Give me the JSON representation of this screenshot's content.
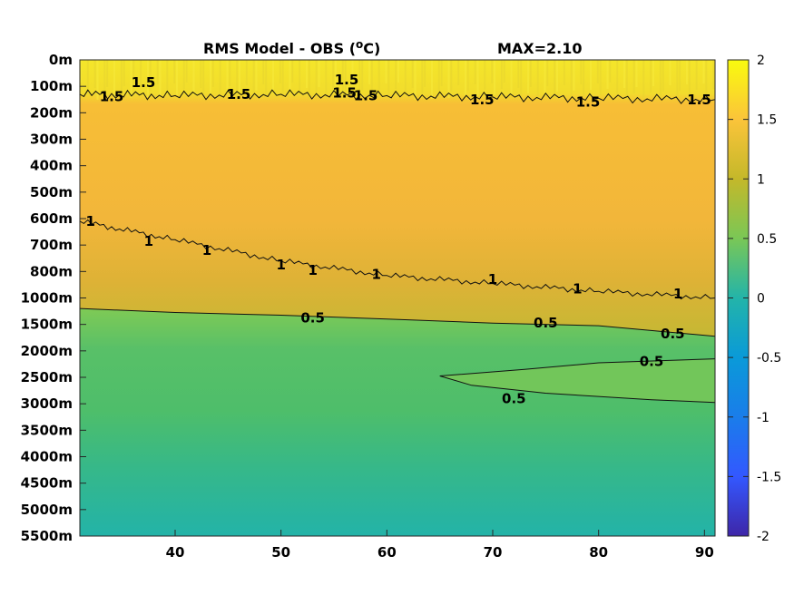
{
  "chart_data": {
    "type": "heatmap",
    "title": "RMS Model - OBS (",
    "title_unit_sup": "o",
    "title_unit_end": "C)",
    "max_label": "MAX=2.10",
    "x_ticks": [
      40,
      50,
      60,
      70,
      80,
      90
    ],
    "xlim": [
      31,
      91
    ],
    "y_ticks": [
      "0m",
      "100m",
      "200m",
      "300m",
      "400m",
      "500m",
      "600m",
      "700m",
      "800m",
      "1000m",
      "1500m",
      "2000m",
      "2500m",
      "3000m",
      "3500m",
      "4000m",
      "4500m",
      "5000m",
      "5500m"
    ],
    "colorbar": {
      "ticks": [
        "2",
        "1.5",
        "1",
        "0.5",
        "0",
        "-0.5",
        "-1",
        "-1.5",
        "-2"
      ],
      "range": [
        -2,
        2
      ]
    },
    "rms_profile": [
      {
        "depth": "0m",
        "value_at_31": 1.85,
        "value_at_91": 1.85
      },
      {
        "depth": "100m",
        "value_at_31": 1.75,
        "value_at_91": 1.75
      },
      {
        "depth": "200m",
        "value_at_31": 1.4,
        "value_at_91": 1.45
      },
      {
        "depth": "300m",
        "value_at_31": 1.35,
        "value_at_91": 1.4
      },
      {
        "depth": "400m",
        "value_at_31": 1.32,
        "value_at_91": 1.38
      },
      {
        "depth": "500m",
        "value_at_31": 1.28,
        "value_at_91": 1.35
      },
      {
        "depth": "600m",
        "value_at_31": 1.02,
        "value_at_91": 1.3
      },
      {
        "depth": "700m",
        "value_at_31": 0.95,
        "value_at_91": 1.25
      },
      {
        "depth": "800m",
        "value_at_31": 0.85,
        "value_at_91": 1.15
      },
      {
        "depth": "1000m",
        "value_at_31": 0.6,
        "value_at_91": 0.95
      },
      {
        "depth": "1500m",
        "value_at_31": 0.45,
        "value_at_91": 0.55
      },
      {
        "depth": "2000m",
        "value_at_31": 0.42,
        "value_at_91": 0.5
      },
      {
        "depth": "2500m",
        "value_at_31": 0.45,
        "value_at_91": 0.55
      },
      {
        "depth": "3000m",
        "value_at_31": 0.4,
        "value_at_91": 0.5
      },
      {
        "depth": "3500m",
        "value_at_31": 0.32,
        "value_at_91": 0.42
      },
      {
        "depth": "4000m",
        "value_at_31": 0.28,
        "value_at_91": 0.35
      },
      {
        "depth": "4500m",
        "value_at_31": 0.25,
        "value_at_91": 0.3
      },
      {
        "depth": "5000m",
        "value_at_31": 0.22,
        "value_at_91": 0.26
      },
      {
        "depth": "5500m",
        "value_at_31": 0.18,
        "value_at_91": 0.2
      }
    ],
    "contours": [
      {
        "level": 1.5,
        "points": [
          [
            31,
            1.3
          ],
          [
            40,
            1.35
          ],
          [
            50,
            1.3
          ],
          [
            60,
            1.35
          ],
          [
            70,
            1.4
          ],
          [
            80,
            1.45
          ],
          [
            91,
            1.5
          ]
        ],
        "labels": [
          {
            "x": 34,
            "y": 1.38
          },
          {
            "x": 37,
            "y": 0.85
          },
          {
            "x": 46,
            "y": 1.3
          },
          {
            "x": 56,
            "y": 1.25
          },
          {
            "x": 56.2,
            "y": 0.75
          },
          {
            "x": 58,
            "y": 1.35
          },
          {
            "x": 69,
            "y": 1.5
          },
          {
            "x": 79,
            "y": 1.6
          },
          {
            "x": 89.5,
            "y": 1.5
          }
        ]
      },
      {
        "level": 1,
        "points": [
          [
            31,
            6.1
          ],
          [
            40,
            6.8
          ],
          [
            50,
            7.6
          ],
          [
            60,
            8.15
          ],
          [
            70,
            8.45
          ],
          [
            80,
            8.75
          ],
          [
            91,
            9.0
          ]
        ],
        "labels": [
          {
            "x": 32,
            "y": 6.1
          },
          {
            "x": 37.5,
            "y": 6.85
          },
          {
            "x": 43,
            "y": 7.2
          },
          {
            "x": 50,
            "y": 7.75
          },
          {
            "x": 53,
            "y": 7.95
          },
          {
            "x": 59,
            "y": 8.1
          },
          {
            "x": 70,
            "y": 8.3
          },
          {
            "x": 78,
            "y": 8.65
          },
          {
            "x": 87.5,
            "y": 8.85
          }
        ]
      },
      {
        "level": 0.5,
        "points": [
          [
            31,
            9.4
          ],
          [
            40,
            9.55
          ],
          [
            50,
            9.65
          ],
          [
            60,
            9.8
          ],
          [
            70,
            9.95
          ],
          [
            80,
            10.05
          ],
          [
            91,
            10.45
          ]
        ],
        "labels": [
          {
            "x": 53,
            "y": 9.75
          },
          {
            "x": 75,
            "y": 9.95
          },
          {
            "x": 87,
            "y": 10.35
          }
        ]
      },
      {
        "level": 0.5,
        "points": [
          [
            91,
            11.3
          ],
          [
            80,
            11.45
          ],
          [
            73,
            11.7
          ],
          [
            65,
            11.95
          ],
          [
            68,
            12.3
          ],
          [
            75,
            12.6
          ],
          [
            85,
            12.85
          ],
          [
            91,
            12.95
          ]
        ],
        "labels": [
          {
            "x": 85,
            "y": 11.4
          },
          {
            "x": 72,
            "y": 12.8
          }
        ]
      }
    ]
  }
}
